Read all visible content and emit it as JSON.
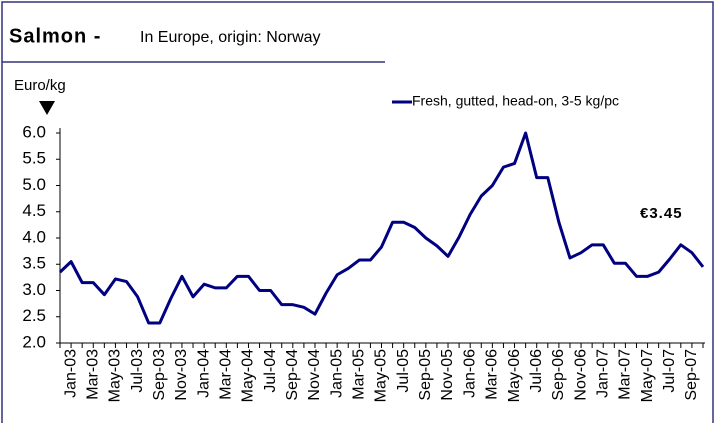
{
  "chart_data": {
    "type": "line",
    "title": "Salmon -",
    "subtitle": "In Europe, origin: Norway",
    "y_label": "Euro/kg",
    "annotation": "€3.45",
    "categories": [
      null,
      "Jan-03",
      null,
      "Mar-03",
      null,
      "May-03",
      null,
      "Jul-03",
      null,
      "Sep-03",
      null,
      "Nov-03",
      null,
      "Jan-04",
      null,
      "Mar-04",
      null,
      "May-04",
      null,
      "Jul-04",
      null,
      "Sep-04",
      null,
      "Nov-04",
      null,
      "Jan-05",
      null,
      "Mar-05",
      null,
      "May-05",
      null,
      "Jul-05",
      null,
      "Sep-05",
      null,
      "Nov-05",
      null,
      "Jan-06",
      null,
      "Mar-06",
      null,
      "May-06",
      null,
      "Jul-06",
      null,
      "Sep-06",
      null,
      "Nov-06",
      null,
      "Jan-07",
      null,
      "Mar-07",
      null,
      "May-07",
      null,
      "Jul-07",
      null,
      "Sep-07",
      null
    ],
    "series": [
      {
        "name": "Fresh, gutted, head-on, 3-5 kg/pc",
        "color": "#000080",
        "values": [
          3.35,
          3.55,
          3.15,
          3.15,
          2.92,
          3.22,
          3.17,
          2.88,
          2.38,
          2.38,
          2.85,
          3.27,
          2.88,
          3.12,
          3.05,
          3.05,
          3.27,
          3.27,
          3.0,
          3.0,
          2.73,
          2.73,
          2.68,
          2.55,
          2.95,
          3.3,
          3.42,
          3.58,
          3.58,
          3.83,
          4.3,
          4.3,
          4.2,
          4.0,
          3.85,
          3.65,
          4.02,
          4.45,
          4.8,
          5.0,
          5.35,
          5.42,
          6.0,
          5.15,
          5.15,
          4.3,
          3.62,
          3.72,
          3.87,
          3.87,
          3.52,
          3.52,
          3.27,
          3.27,
          3.35,
          3.6,
          3.87,
          3.72,
          3.45
        ]
      }
    ],
    "ylim": [
      2,
      6
    ],
    "yticks": [
      {
        "value": 2,
        "label": "2.0"
      },
      {
        "value": 2.5,
        "label": "2.5"
      },
      {
        "value": 3,
        "label": "3.0"
      },
      {
        "value": 3.5,
        "label": "3.5"
      },
      {
        "value": 4,
        "label": "4.0"
      },
      {
        "value": 4.5,
        "label": "4.5"
      },
      {
        "value": 5,
        "label": "5.0"
      },
      {
        "value": 5.5,
        "label": "5.5"
      },
      {
        "value": 6,
        "label": "6.0"
      }
    ],
    "grid": false
  }
}
